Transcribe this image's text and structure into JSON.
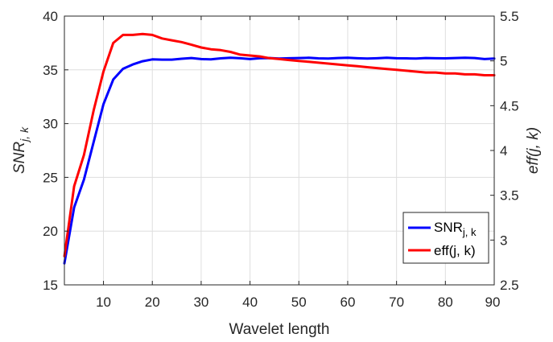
{
  "chart_data": {
    "type": "line",
    "xlabel": "Wavelet length",
    "ylabel_left": {
      "main": "SNR",
      "subscript": "j, k"
    },
    "ylabel_right": "eff(j, k)",
    "xlim": [
      2,
      90
    ],
    "ylim_left": [
      15,
      40
    ],
    "ylim_right": [
      2.5,
      5.5
    ],
    "x_ticks": [
      10,
      20,
      30,
      40,
      50,
      60,
      70,
      80,
      90
    ],
    "y_ticks_left": [
      15,
      20,
      25,
      30,
      35,
      40
    ],
    "y_ticks_left_labels": [
      "15",
      "20",
      "25",
      "30",
      "35",
      "40"
    ],
    "y_ticks_right": [
      2.5,
      3,
      3.5,
      4,
      4.5,
      5,
      5.5
    ],
    "y_ticks_right_labels": [
      "2.5",
      "3",
      "3.5",
      "4",
      "4.5",
      "5",
      "5.5"
    ],
    "grid": true,
    "legend_position": "bottom-right",
    "series": [
      {
        "name": "SNR",
        "name_subscript": "j, k",
        "axis": "left",
        "color": "#0000ff",
        "x": [
          2,
          4,
          6,
          8,
          10,
          12,
          14,
          16,
          18,
          20,
          22,
          24,
          26,
          28,
          30,
          32,
          34,
          36,
          38,
          40,
          42,
          44,
          46,
          48,
          50,
          52,
          54,
          56,
          58,
          60,
          62,
          64,
          66,
          68,
          70,
          72,
          74,
          76,
          78,
          80,
          82,
          84,
          86,
          88,
          90
        ],
        "y": [
          17.0,
          22.2,
          24.8,
          28.3,
          31.8,
          34.1,
          35.1,
          35.5,
          35.8,
          35.97,
          35.95,
          35.95,
          36.03,
          36.1,
          36.0,
          35.97,
          36.07,
          36.12,
          36.08,
          36.0,
          36.08,
          36.1,
          36.05,
          36.08,
          36.1,
          36.12,
          36.07,
          36.05,
          36.1,
          36.12,
          36.08,
          36.05,
          36.08,
          36.12,
          36.08,
          36.07,
          36.05,
          36.1,
          36.08,
          36.07,
          36.1,
          36.12,
          36.1,
          36.0,
          36.05
        ]
      },
      {
        "name": "eff(j, k)",
        "axis": "right",
        "color": "#ff0000",
        "x": [
          2,
          4,
          6,
          8,
          10,
          12,
          14,
          16,
          18,
          20,
          22,
          24,
          26,
          28,
          30,
          32,
          34,
          36,
          38,
          40,
          42,
          44,
          46,
          48,
          50,
          52,
          54,
          56,
          58,
          60,
          62,
          64,
          66,
          68,
          70,
          72,
          74,
          76,
          78,
          80,
          82,
          84,
          86,
          88,
          90
        ],
        "y": [
          2.82,
          3.6,
          3.95,
          4.45,
          4.88,
          5.2,
          5.29,
          5.29,
          5.3,
          5.29,
          5.25,
          5.23,
          5.21,
          5.18,
          5.15,
          5.13,
          5.12,
          5.1,
          5.07,
          5.06,
          5.05,
          5.03,
          5.02,
          5.01,
          5.0,
          4.99,
          4.98,
          4.97,
          4.96,
          4.95,
          4.94,
          4.93,
          4.92,
          4.91,
          4.9,
          4.89,
          4.88,
          4.87,
          4.87,
          4.86,
          4.86,
          4.85,
          4.85,
          4.84,
          4.84
        ]
      }
    ]
  }
}
